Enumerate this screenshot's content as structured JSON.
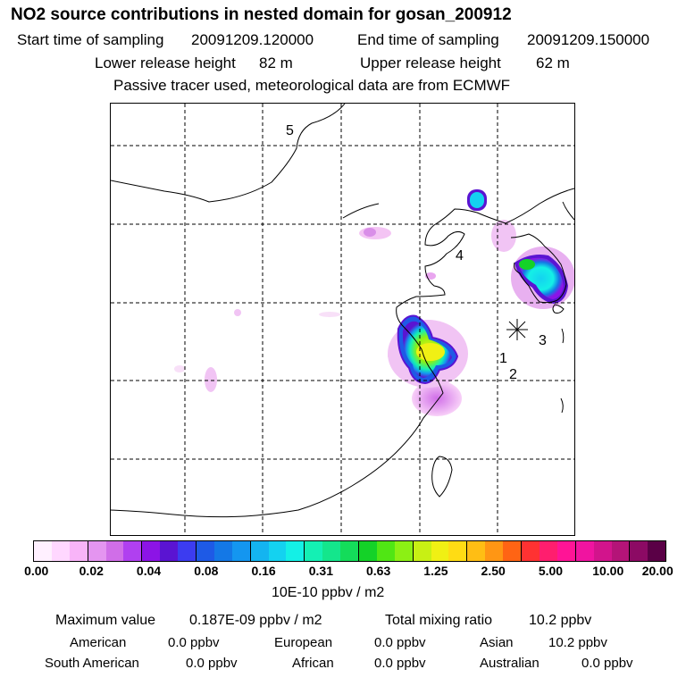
{
  "title": "NO2 source contributions in nested domain for gosan_200912",
  "sampling": {
    "start_label": "Start time of sampling",
    "start_value": "20091209.120000",
    "end_label": "End time of sampling",
    "end_value": "20091209.150000"
  },
  "release": {
    "lower_label": "Lower release height",
    "lower_value": "82 m",
    "upper_label": "Upper release height",
    "upper_value": "62 m"
  },
  "note": "Passive tracer used, meteorological data are from ECMWF",
  "map": {
    "labels": [
      "5",
      "4",
      "3",
      "1",
      "2"
    ],
    "release_marker_icon": "star-icon"
  },
  "colorbar": {
    "colors": [
      "#fff0ff",
      "#ffd7ff",
      "#f8b4f8",
      "#e495f0",
      "#d06ee8",
      "#b040f0",
      "#8c14e6",
      "#5a14d2",
      "#3c3cf0",
      "#1e5ae6",
      "#1478e6",
      "#1496f0",
      "#14b4f0",
      "#14d2f0",
      "#14f0e6",
      "#14f0b4",
      "#14e68c",
      "#14dc5a",
      "#14d228",
      "#50e614",
      "#8cf014",
      "#c8f014",
      "#f0f014",
      "#ffdc14",
      "#ffbe14",
      "#ff9614",
      "#ff6414",
      "#ff3232",
      "#ff1e6e",
      "#ff1496",
      "#f014a0",
      "#d2148c",
      "#b41478",
      "#8c0a64",
      "#5a0046"
    ],
    "ticks": [
      "0.00",
      "0.02",
      "0.04",
      "0.08",
      "0.16",
      "0.31",
      "0.63",
      "1.25",
      "2.50",
      "5.00",
      "10.00",
      "20.00"
    ],
    "unit": "10E-10 ppbv / m2"
  },
  "summary": {
    "max_label": "Maximum value",
    "max_value": "0.187E-09 ppbv / m2",
    "total_label": "Total mixing ratio",
    "total_value": "10.2 ppbv"
  },
  "regions": [
    {
      "name": "American",
      "value": "0.0 ppbv"
    },
    {
      "name": "European",
      "value": "0.0 ppbv"
    },
    {
      "name": "Asian",
      "value": "10.2 ppbv"
    },
    {
      "name": "South American",
      "value": "0.0 ppbv"
    },
    {
      "name": "African",
      "value": "0.0 ppbv"
    },
    {
      "name": "Australian",
      "value": "0.0 ppbv"
    }
  ]
}
